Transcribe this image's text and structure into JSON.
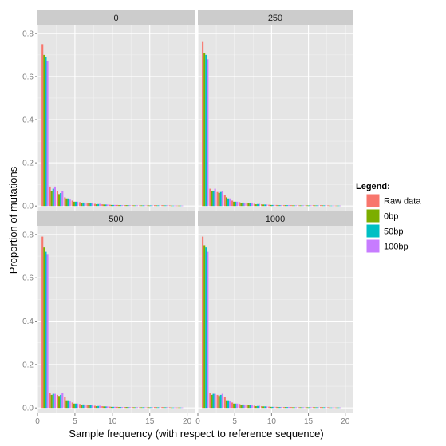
{
  "chart_data": {
    "type": "bar",
    "xlabel": "Sample frequency (with respect to reference sequence)",
    "ylabel": "Proportion of mutations",
    "xlim": [
      0,
      21
    ],
    "ylim": [
      -0.025,
      0.84
    ],
    "x_ticks": [
      0,
      5,
      10,
      15,
      20
    ],
    "y_ticks": [
      0.0,
      0.2,
      0.4,
      0.6,
      0.8
    ],
    "y_tick_labels": [
      "0.0",
      "0.2",
      "0.4",
      "0.6",
      "0.8"
    ],
    "grid": true,
    "legend": {
      "title": "Legend:",
      "position": "right",
      "entries": [
        {
          "name": "Raw data",
          "color": "#F8766D"
        },
        {
          "name": "0bp",
          "color": "#7CAE00"
        },
        {
          "name": "50bp",
          "color": "#00BFC4"
        },
        {
          "name": "100bp",
          "color": "#C77CFF"
        }
      ]
    },
    "x": [
      1,
      2,
      3,
      4,
      5,
      6,
      7,
      8,
      9,
      10,
      11,
      12,
      13,
      14,
      15,
      16,
      17,
      18,
      19
    ],
    "panels": [
      {
        "label": "0",
        "series": [
          {
            "name": "Raw data",
            "values": [
              0.75,
              0.09,
              0.07,
              0.04,
              0.025,
              0.018,
              0.015,
              0.01,
              0.008,
              0.006,
              0.005,
              0.004,
              0.004,
              0.003,
              0.003,
              0.004,
              0.004,
              0.003,
              0.002
            ]
          },
          {
            "name": "0bp",
            "values": [
              0.7,
              0.07,
              0.055,
              0.035,
              0.02,
              0.015,
              0.012,
              0.008,
              0.007,
              0.005,
              0.004,
              0.004,
              0.003,
              0.003,
              0.003,
              0.003,
              0.003,
              0.002,
              0.002
            ]
          },
          {
            "name": "50bp",
            "values": [
              0.69,
              0.08,
              0.06,
              0.035,
              0.02,
              0.016,
              0.013,
              0.009,
              0.007,
              0.005,
              0.004,
              0.004,
              0.003,
              0.003,
              0.003,
              0.003,
              0.003,
              0.002,
              0.002
            ]
          },
          {
            "name": "100bp",
            "values": [
              0.67,
              0.09,
              0.07,
              0.03,
              0.02,
              0.015,
              0.013,
              0.01,
              0.007,
              0.005,
              0.004,
              0.004,
              0.003,
              0.003,
              0.003,
              0.003,
              0.003,
              0.002,
              0.002
            ]
          }
        ]
      },
      {
        "label": "250",
        "series": [
          {
            "name": "Raw data",
            "values": [
              0.76,
              0.08,
              0.065,
              0.05,
              0.025,
              0.018,
              0.015,
              0.01,
              0.008,
              0.006,
              0.005,
              0.004,
              0.004,
              0.003,
              0.003,
              0.004,
              0.004,
              0.003,
              0.002
            ]
          },
          {
            "name": "0bp",
            "values": [
              0.71,
              0.07,
              0.06,
              0.04,
              0.02,
              0.015,
              0.012,
              0.008,
              0.007,
              0.005,
              0.004,
              0.004,
              0.003,
              0.003,
              0.003,
              0.003,
              0.003,
              0.002,
              0.002
            ]
          },
          {
            "name": "50bp",
            "values": [
              0.7,
              0.07,
              0.065,
              0.035,
              0.02,
              0.016,
              0.013,
              0.009,
              0.007,
              0.005,
              0.004,
              0.004,
              0.003,
              0.003,
              0.003,
              0.003,
              0.003,
              0.002,
              0.002
            ]
          },
          {
            "name": "100bp",
            "values": [
              0.68,
              0.08,
              0.07,
              0.035,
              0.02,
              0.015,
              0.013,
              0.01,
              0.007,
              0.005,
              0.004,
              0.004,
              0.003,
              0.003,
              0.003,
              0.003,
              0.003,
              0.002,
              0.002
            ]
          }
        ]
      },
      {
        "label": "500",
        "series": [
          {
            "name": "Raw data",
            "values": [
              0.79,
              0.07,
              0.06,
              0.05,
              0.025,
              0.018,
              0.015,
              0.01,
              0.008,
              0.006,
              0.005,
              0.004,
              0.004,
              0.003,
              0.003,
              0.004,
              0.004,
              0.003,
              0.002
            ]
          },
          {
            "name": "0bp",
            "values": [
              0.74,
              0.06,
              0.055,
              0.035,
              0.02,
              0.015,
              0.012,
              0.008,
              0.007,
              0.005,
              0.004,
              0.004,
              0.003,
              0.003,
              0.003,
              0.003,
              0.003,
              0.002,
              0.002
            ]
          },
          {
            "name": "50bp",
            "values": [
              0.72,
              0.065,
              0.06,
              0.035,
              0.02,
              0.016,
              0.013,
              0.009,
              0.007,
              0.005,
              0.004,
              0.004,
              0.003,
              0.003,
              0.003,
              0.003,
              0.003,
              0.002,
              0.002
            ]
          },
          {
            "name": "100bp",
            "values": [
              0.71,
              0.065,
              0.07,
              0.03,
              0.02,
              0.015,
              0.013,
              0.01,
              0.007,
              0.005,
              0.004,
              0.004,
              0.003,
              0.003,
              0.003,
              0.003,
              0.003,
              0.002,
              0.002
            ]
          }
        ]
      },
      {
        "label": "1000",
        "series": [
          {
            "name": "Raw data",
            "values": [
              0.79,
              0.07,
              0.06,
              0.05,
              0.025,
              0.018,
              0.015,
              0.01,
              0.008,
              0.006,
              0.005,
              0.004,
              0.004,
              0.003,
              0.003,
              0.004,
              0.004,
              0.003,
              0.002
            ]
          },
          {
            "name": "0bp",
            "values": [
              0.75,
              0.06,
              0.055,
              0.035,
              0.02,
              0.015,
              0.012,
              0.008,
              0.007,
              0.005,
              0.004,
              0.004,
              0.003,
              0.003,
              0.003,
              0.003,
              0.003,
              0.002,
              0.002
            ]
          },
          {
            "name": "50bp",
            "values": [
              0.74,
              0.065,
              0.06,
              0.035,
              0.02,
              0.016,
              0.013,
              0.009,
              0.007,
              0.005,
              0.004,
              0.004,
              0.003,
              0.003,
              0.003,
              0.003,
              0.003,
              0.002,
              0.002
            ]
          },
          {
            "name": "100bp",
            "values": [
              0.72,
              0.065,
              0.065,
              0.03,
              0.02,
              0.015,
              0.013,
              0.01,
              0.007,
              0.005,
              0.004,
              0.004,
              0.003,
              0.003,
              0.003,
              0.003,
              0.003,
              0.002,
              0.002
            ]
          }
        ]
      }
    ]
  }
}
